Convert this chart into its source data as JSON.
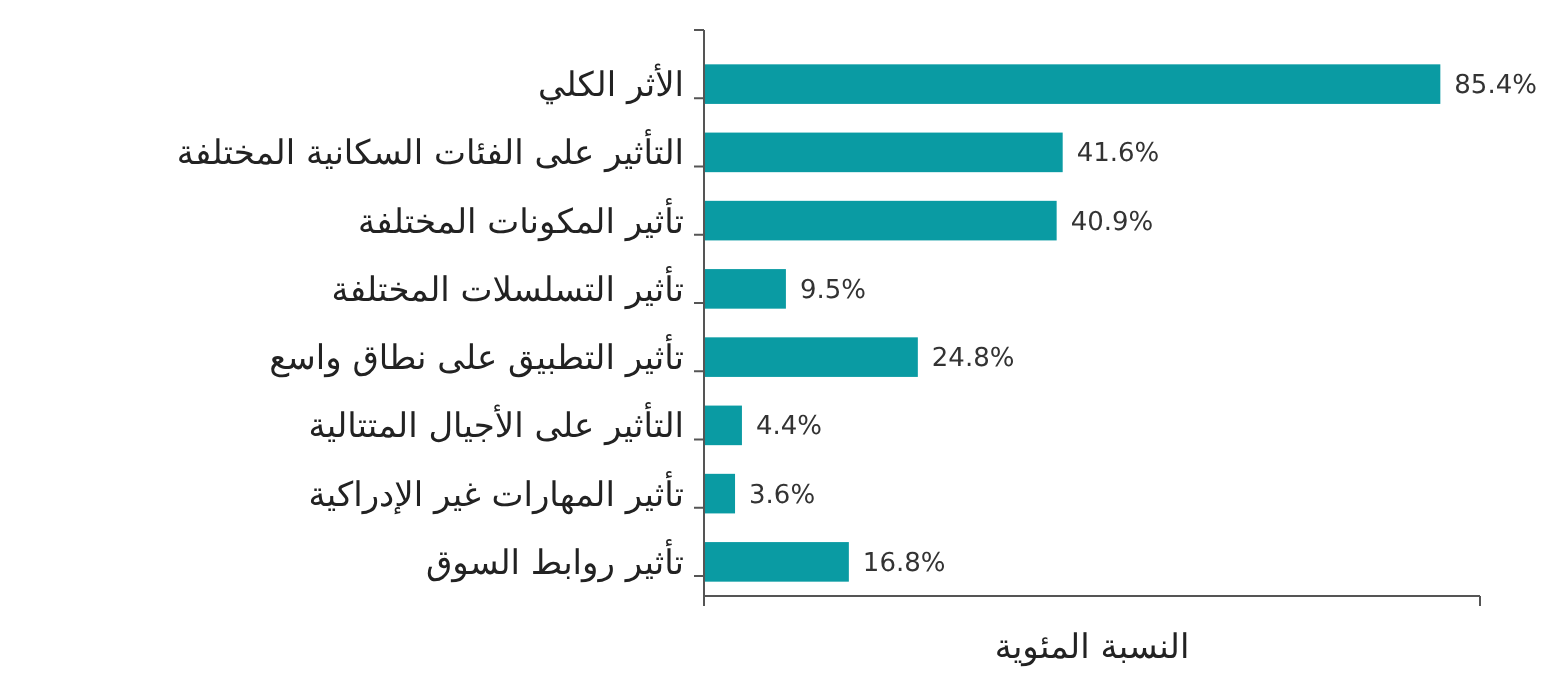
{
  "chart_data": {
    "type": "bar",
    "orientation": "horizontal",
    "xlabel": "النسبة المئوية",
    "categories": [
      "الأثر الكلي",
      "التأثير على الفئات السكانية المختلفة",
      "تأثير المكونات المختلفة",
      "تأثير التسلسلات المختلفة",
      "تأثير التطبيق على نطاق واسع",
      "التأثير على الأجيال المتتالية",
      "تأثير المهارات غير الإدراكية",
      "تأثير روابط السوق"
    ],
    "values": [
      85.4,
      41.6,
      40.9,
      9.5,
      24.8,
      4.4,
      3.6,
      16.8
    ],
    "value_labels": [
      "85.4%",
      "41.6%",
      "40.9%",
      "9.5%",
      "24.8%",
      "4.4%",
      "3.6%",
      "16.8%"
    ],
    "color": "#0a9ba3",
    "xlim": [
      0,
      90
    ],
    "xticks": [
      {
        "value": 0,
        "label": null
      },
      {
        "value": 90,
        "label": null
      }
    ],
    "tick_labels": "y",
    "grid": false
  }
}
